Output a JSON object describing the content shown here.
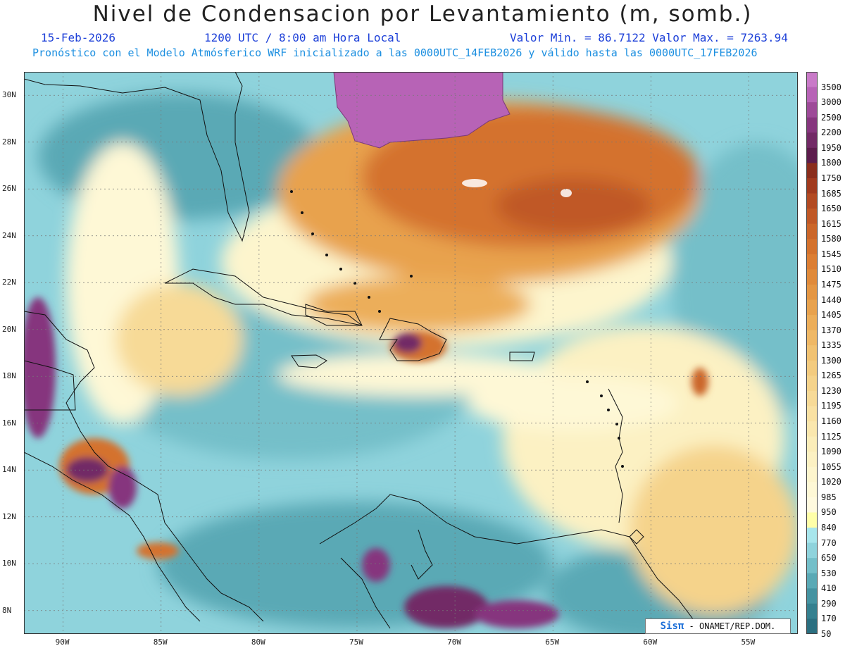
{
  "header": {
    "title": "Nivel de Condensacion por Levantamiento (m, somb.)",
    "date": "15-Feb-2026",
    "time": "1200 UTC / 8:00 am Hora Local",
    "minmax": "Valor Min. = 86.7122  Valor Max. = 7263.94",
    "subtitle": "Pronóstico con el Modelo Atmósferico WRF inicializado a las 0000UTC_14FEB2026 y válido hasta las  0000UTC_17FEB2026"
  },
  "map": {
    "lon_range": [
      -92,
      -52.5
    ],
    "lat_range": [
      7,
      31
    ],
    "lat_ticks": [
      "30N",
      "28N",
      "26N",
      "24N",
      "22N",
      "20N",
      "18N",
      "16N",
      "14N",
      "12N",
      "10N",
      "8N"
    ],
    "lon_ticks": [
      "90W",
      "85W",
      "80W",
      "75W",
      "70W",
      "65W",
      "60W",
      "55W"
    ],
    "lat_values": [
      30,
      28,
      26,
      24,
      22,
      20,
      18,
      16,
      14,
      12,
      10,
      8
    ],
    "lon_values": [
      -90,
      -85,
      -80,
      -75,
      -70,
      -65,
      -60,
      -55
    ]
  },
  "colorbar": {
    "labels": [
      "3500",
      "3000",
      "2500",
      "2200",
      "1950",
      "1800",
      "1750",
      "1685",
      "1650",
      "1615",
      "1580",
      "1545",
      "1510",
      "1475",
      "1440",
      "1405",
      "1370",
      "1335",
      "1300",
      "1265",
      "1230",
      "1195",
      "1160",
      "1125",
      "1090",
      "1055",
      "1020",
      "985",
      "950",
      "840",
      "770",
      "650",
      "530",
      "410",
      "290",
      "170",
      "50"
    ],
    "colors": [
      "#c97ac8",
      "#b763b6",
      "#9d4a98",
      "#86367e",
      "#722a66",
      "#5c1c4c",
      "#8a2d1c",
      "#a13a1e",
      "#b24a22",
      "#c05826",
      "#cb6629",
      "#d4722d",
      "#dc7e33",
      "#e08a3a",
      "#e49643",
      "#e8a24e",
      "#ecae5a",
      "#efb866",
      "#f1c272",
      "#f3cb7f",
      "#f5d38b",
      "#f7da97",
      "#f9e1a3",
      "#fae7ae",
      "#fbedb9",
      "#fcf1c3",
      "#fdf5cd",
      "#fef8d6",
      "#fffadf",
      "#ffffa8",
      "#a8e6ec",
      "#8fd3dc",
      "#74bfc9",
      "#5aa9b5",
      "#4593a1",
      "#35808f",
      "#2b6f80"
    ]
  },
  "credit": {
    "logo": "Sisπ",
    "text": " - ONAMET/REP.DOM."
  }
}
